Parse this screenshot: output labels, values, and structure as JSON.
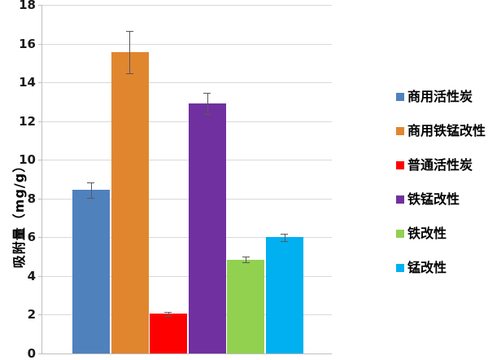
{
  "chart_data": {
    "type": "bar",
    "title": "",
    "xlabel": "",
    "ylabel": "吸附量（mg/g）",
    "ylim": [
      0,
      18
    ],
    "yticks": [
      0,
      2,
      4,
      6,
      8,
      10,
      12,
      14,
      16,
      18
    ],
    "grid": true,
    "legend_position": "right",
    "error_bars": true,
    "series": [
      {
        "name": "商用活性炭",
        "value": 8.45,
        "error": 0.4,
        "color": "#4F81BD"
      },
      {
        "name": "商用铁锰改性",
        "value": 15.55,
        "error": 1.1,
        "color": "#E0862F"
      },
      {
        "name": "普通活性炭",
        "value": 2.05,
        "error": 0.1,
        "color": "#FF0000"
      },
      {
        "name": "铁锰改性",
        "value": 12.9,
        "error": 0.55,
        "color": "#7030A0"
      },
      {
        "name": "铁改性",
        "value": 4.85,
        "error": 0.15,
        "color": "#92D050"
      },
      {
        "name": "锰改性",
        "value": 6.0,
        "error": 0.2,
        "color": "#00B0F0"
      }
    ]
  },
  "colors": {
    "background": "#FFFFFF",
    "gridline": "#D9D9D9",
    "axis": "#BFBFBF",
    "error_bar": "#595959",
    "tick_text": "#1A1A1A"
  }
}
